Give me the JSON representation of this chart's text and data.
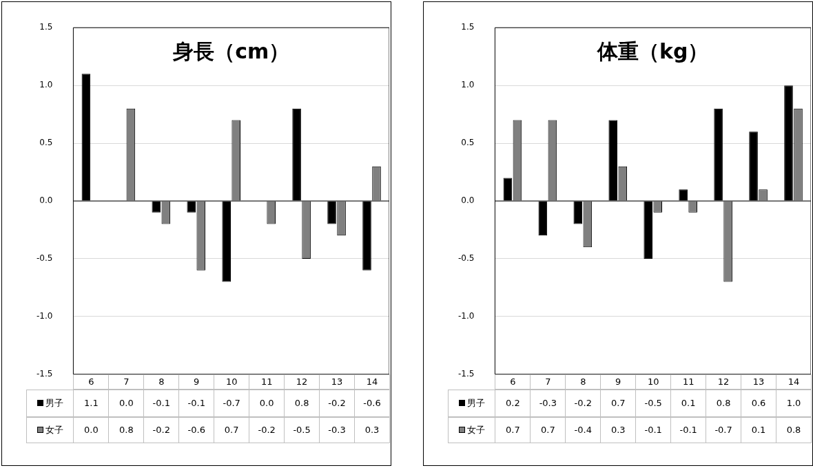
{
  "chart_data": [
    {
      "type": "bar",
      "title": "身長（cm）",
      "categories": [
        "6",
        "7",
        "8",
        "9",
        "10",
        "11",
        "12",
        "13",
        "14"
      ],
      "series": [
        {
          "name": "男子",
          "color": "#000000",
          "values": [
            1.1,
            0,
            -0.1,
            -0.1,
            -0.7,
            0,
            0.8,
            -0.2,
            -0.6
          ],
          "value_labels": [
            "1.1",
            "0.0",
            "-0.1",
            "-0.1",
            "-0.7",
            "0.0",
            "0.8",
            "-0.2",
            "-0.6"
          ]
        },
        {
          "name": "女子",
          "color": "#808080",
          "values": [
            0,
            0.8,
            -0.2,
            -0.6,
            0.7,
            -0.2,
            -0.5,
            -0.3,
            0.3
          ],
          "value_labels": [
            "0.0",
            "0.8",
            "-0.2",
            "-0.6",
            "0.7",
            "-0.2",
            "-0.5",
            "-0.3",
            "0.3"
          ]
        }
      ],
      "ylim": [
        -1.5,
        1.5
      ],
      "yticks": [
        {
          "value": -1.5,
          "label": "-1.5"
        },
        {
          "value": -1,
          "label": "-1.0"
        },
        {
          "value": -0.5,
          "label": "-0.5"
        },
        {
          "value": 0,
          "label": "0.0"
        },
        {
          "value": 0.5,
          "label": "0.5"
        },
        {
          "value": 1,
          "label": "1.0"
        },
        {
          "value": 1.5,
          "label": "1.5"
        }
      ],
      "grid": "y",
      "legend": "bottom"
    },
    {
      "type": "bar",
      "title": "体重（kg）",
      "categories": [
        "6",
        "7",
        "8",
        "9",
        "10",
        "11",
        "12",
        "13",
        "14"
      ],
      "series": [
        {
          "name": "男子",
          "color": "#000000",
          "values": [
            0.2,
            -0.3,
            -0.2,
            0.7,
            -0.5,
            0.1,
            0.8,
            0.6,
            1
          ],
          "value_labels": [
            "0.2",
            "-0.3",
            "-0.2",
            "0.7",
            "-0.5",
            "0.1",
            "0.8",
            "0.6",
            "1.0"
          ]
        },
        {
          "name": "女子",
          "color": "#808080",
          "values": [
            0.7,
            0.7,
            -0.4,
            0.3,
            -0.1,
            -0.1,
            -0.7,
            0.1,
            0.8
          ],
          "value_labels": [
            "0.7",
            "0.7",
            "-0.4",
            "0.3",
            "-0.1",
            "-0.1",
            "-0.7",
            "0.1",
            "0.8"
          ]
        }
      ],
      "ylim": [
        -1.5,
        1.5
      ],
      "yticks": [
        {
          "value": -1.5,
          "label": "-1.5"
        },
        {
          "value": -1,
          "label": "-1.0"
        },
        {
          "value": -0.5,
          "label": "-0.5"
        },
        {
          "value": 0,
          "label": "0.0"
        },
        {
          "value": 0.5,
          "label": "0.5"
        },
        {
          "value": 1,
          "label": "1.0"
        },
        {
          "value": 1.5,
          "label": "1.5"
        }
      ],
      "grid": "y",
      "legend": "bottom"
    }
  ]
}
